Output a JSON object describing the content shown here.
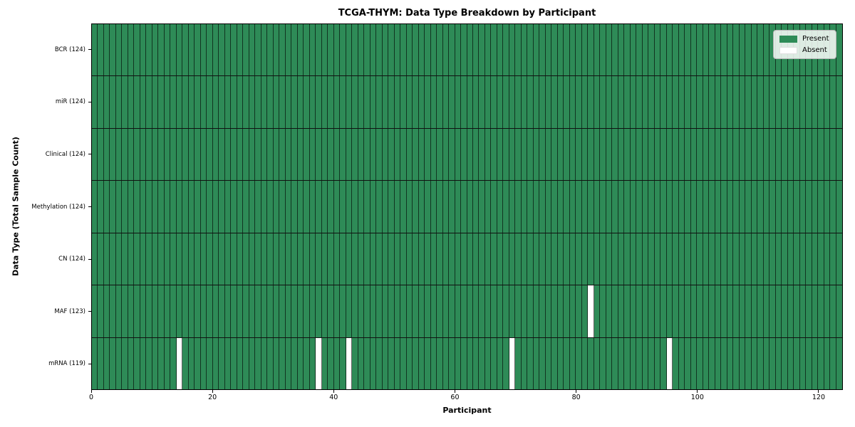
{
  "chart_data": {
    "type": "heatmap",
    "title": "TCGA-THYM: Data Type Breakdown by Participant",
    "xlabel": "Participant",
    "ylabel": "Data Type (Total Sample Count)",
    "n_participants": 124,
    "x_ticks": [
      0,
      20,
      40,
      60,
      80,
      100,
      120
    ],
    "xlim": [
      0,
      124
    ],
    "grid": false,
    "legend_position": "upper right",
    "rows": [
      {
        "label": "BCR (124)",
        "data_type": "BCR",
        "present_count": 124,
        "absent_indices": []
      },
      {
        "label": "miR (124)",
        "data_type": "miR",
        "present_count": 124,
        "absent_indices": []
      },
      {
        "label": "Clinical (124)",
        "data_type": "Clinical",
        "present_count": 124,
        "absent_indices": []
      },
      {
        "label": "Methylation (124)",
        "data_type": "Methylation",
        "present_count": 124,
        "absent_indices": []
      },
      {
        "label": "CN (124)",
        "data_type": "CN",
        "present_count": 124,
        "absent_indices": []
      },
      {
        "label": "MAF (123)",
        "data_type": "MAF",
        "present_count": 123,
        "absent_indices": [
          82
        ]
      },
      {
        "label": "mRNA (119)",
        "data_type": "mRNA",
        "present_count": 119,
        "absent_indices": [
          14,
          37,
          42,
          69,
          95
        ]
      }
    ],
    "legend": [
      {
        "label": "Present",
        "color": "#2e8b57"
      },
      {
        "label": "Absent",
        "color": "#ffffff"
      }
    ],
    "colors": {
      "present": "#2e8b57",
      "absent": "#ffffff",
      "cell_edge": "#1c1c1c",
      "axes_edge": "#000000",
      "background": "#ffffff"
    }
  }
}
